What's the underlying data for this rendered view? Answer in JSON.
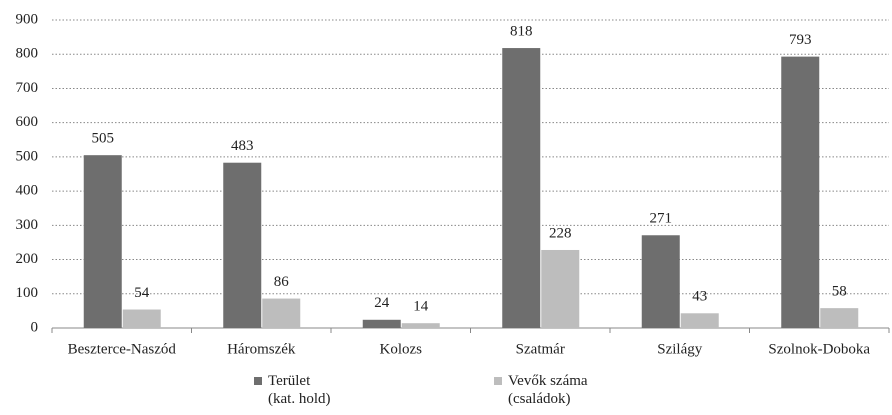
{
  "chart_data": {
    "type": "bar",
    "categories": [
      "Beszterce-Naszód",
      "Háromszék",
      "Kolozs",
      "Szatmár",
      "Szilágy",
      "Szolnok-Doboka"
    ],
    "series": [
      {
        "name": "Terület\n(kat. hold)",
        "color": "#6e6e6e",
        "values": [
          505,
          483,
          24,
          818,
          271,
          793
        ]
      },
      {
        "name": "Vevők száma\n(családok)",
        "color": "#bdbdbd",
        "values": [
          54,
          86,
          14,
          228,
          43,
          58
        ]
      }
    ],
    "ylim": [
      0,
      900
    ],
    "yticks": [
      0,
      100,
      200,
      300,
      400,
      500,
      600,
      700,
      800,
      900
    ],
    "grid": true,
    "legend": "bottom"
  }
}
